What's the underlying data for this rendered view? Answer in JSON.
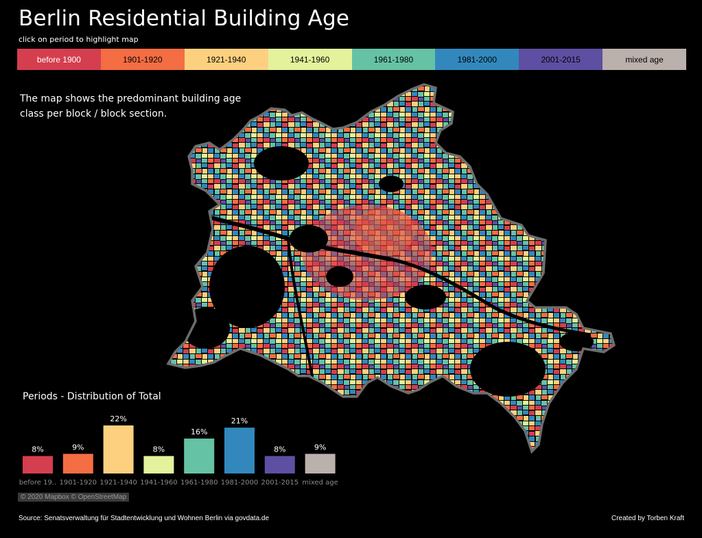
{
  "header": {
    "title": "Berlin Residential Building Age",
    "subtitle": "click on period to highlight map"
  },
  "periods": [
    {
      "label": "before 1900",
      "color": "#d53e4f"
    },
    {
      "label": "1901-1920",
      "color": "#f46d43"
    },
    {
      "label": "1921-1940",
      "color": "#fdd07f"
    },
    {
      "label": "1941-1960",
      "color": "#e3f29b"
    },
    {
      "label": "1961-1980",
      "color": "#66c2a5"
    },
    {
      "label": "1981-2000",
      "color": "#3288bd"
    },
    {
      "label": "2001-2015",
      "color": "#5e4fa2"
    },
    {
      "label": "mixed age",
      "color": "#bab0ac"
    }
  ],
  "intro_text": "The map shows the predominant building age class per block / block section.",
  "chart_data": {
    "type": "bar",
    "title": "Periods - Distribution of Total",
    "categories": [
      "before 19..",
      "1901-1920",
      "1921-1940",
      "1941-1960",
      "1961-1980",
      "1981-2000",
      "2001-2015",
      "mixed age"
    ],
    "values": [
      8,
      9,
      22,
      8,
      16,
      21,
      8,
      9
    ],
    "value_labels": [
      "8%",
      "9%",
      "22%",
      "8%",
      "16%",
      "21%",
      "8%",
      "9%"
    ],
    "colors": [
      "#d53e4f",
      "#f46d43",
      "#fdd07f",
      "#e3f29b",
      "#66c2a5",
      "#3288bd",
      "#5e4fa2",
      "#bab0ac"
    ],
    "ylim": [
      0,
      22
    ]
  },
  "map": {
    "attribution": "© 2020 Mapbox © OpenStreetMap"
  },
  "footer": {
    "source": "Source: Senatsverwaltung für Stadtentwicklung und Wohnen Berlin via govdata.de",
    "credit": "Created by Torben Kraft"
  }
}
